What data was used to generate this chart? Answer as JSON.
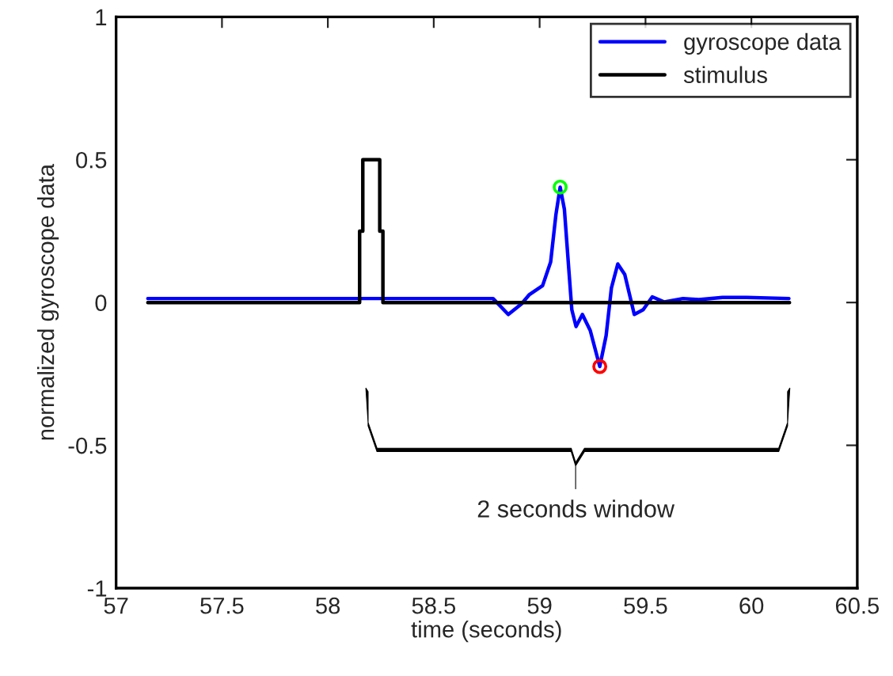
{
  "chart_data": {
    "type": "line",
    "xlabel": "time (seconds)",
    "ylabel": "normalized gyroscope data",
    "xlim": [
      57,
      60.5
    ],
    "xticks": [
      57,
      57.5,
      58,
      58.5,
      59,
      59.5,
      60,
      60.5
    ],
    "ylim": [
      -1,
      1
    ],
    "yticks": [
      {
        "value": -1,
        "label": "-1"
      },
      {
        "value": -0.5,
        "label": "-0.5"
      },
      0,
      0.5,
      1
    ],
    "grid": false,
    "legend": "top right",
    "marker": "none",
    "line_style": "solid",
    "series": [
      {
        "name": "gyroscope data",
        "color": "#0000ff",
        "x": [
          57.15,
          57.952,
          58.78,
          58.852,
          58.914,
          58.952,
          59.014,
          59.052,
          59.077,
          59.097,
          59.117,
          59.139,
          59.152,
          59.172,
          59.202,
          59.239,
          59.284,
          59.314,
          59.339,
          59.369,
          59.402,
          59.447,
          59.489,
          59.532,
          59.589,
          59.677,
          59.752,
          59.864,
          59.977,
          60.177
        ],
        "values": [
          0.014,
          0.014,
          0.014,
          -0.042,
          -0.005,
          0.028,
          0.059,
          0.142,
          0.308,
          0.404,
          0.326,
          0.104,
          -0.025,
          -0.084,
          -0.042,
          -0.098,
          -0.224,
          -0.116,
          0.051,
          0.135,
          0.098,
          -0.042,
          -0.025,
          0.02,
          0.002,
          0.014,
          0.01,
          0.018,
          0.018,
          0.014
        ]
      },
      {
        "name": "stimulus",
        "color": "#000000",
        "x": [
          57.15,
          58.15,
          58.15,
          58.165,
          58.165,
          58.245,
          58.245,
          58.26,
          58.26,
          60.18
        ],
        "values": [
          0,
          0,
          0.25,
          0.25,
          0.5,
          0.5,
          0.25,
          0.25,
          0,
          0
        ]
      },
      {
        "type": "scatter",
        "marker": "circle",
        "color": "#00ff00",
        "x": [
          59.097
        ],
        "values": [
          0.404
        ]
      },
      {
        "type": "scatter",
        "marker": "circle",
        "color": "#ff0000",
        "x": [
          59.284
        ],
        "values": [
          -0.224
        ]
      }
    ],
    "annotations": [
      "2 seconds window"
    ]
  }
}
